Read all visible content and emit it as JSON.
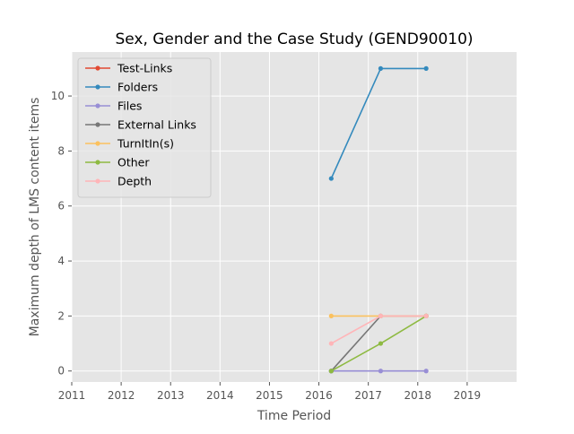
{
  "chart_data": {
    "type": "line",
    "title": "Sex, Gender and the Case Study (GEND90010)",
    "xlabel": "Time Period",
    "ylabel": "Maximum depth of LMS content items",
    "xlim": [
      2011,
      2020
    ],
    "ylim": [
      -0.4,
      11.6
    ],
    "x_ticks": [
      "2011",
      "2012",
      "2013",
      "2014",
      "2015",
      "2016",
      "2017",
      "2018",
      "2019"
    ],
    "y_ticks": [
      "0",
      "2",
      "4",
      "6",
      "8",
      "10"
    ],
    "grid": true,
    "legend_position": "upper-left",
    "series": [
      {
        "name": "Test-Links",
        "color": "#E24A33",
        "x": [],
        "y": []
      },
      {
        "name": "Folders",
        "color": "#348ABD",
        "x": [
          2016.25,
          2017.25,
          2018.17
        ],
        "y": [
          7,
          11,
          11
        ]
      },
      {
        "name": "Files",
        "color": "#988ED5",
        "x": [
          2016.25,
          2017.25,
          2018.17
        ],
        "y": [
          0,
          0,
          0
        ]
      },
      {
        "name": "External Links",
        "color": "#777777",
        "x": [
          2016.25,
          2017.25,
          2018.17
        ],
        "y": [
          0,
          2,
          2
        ]
      },
      {
        "name": "TurnItIn(s)",
        "color": "#FBC15E",
        "x": [
          2016.25,
          2017.25,
          2018.17
        ],
        "y": [
          2,
          2,
          2
        ]
      },
      {
        "name": "Other",
        "color": "#8EBA42",
        "x": [
          2016.25,
          2017.25,
          2018.17
        ],
        "y": [
          0,
          1,
          2
        ]
      },
      {
        "name": "Depth",
        "color": "#FFB5B8",
        "x": [
          2016.25,
          2017.25,
          2018.17
        ],
        "y": [
          1,
          2,
          2
        ]
      }
    ]
  }
}
